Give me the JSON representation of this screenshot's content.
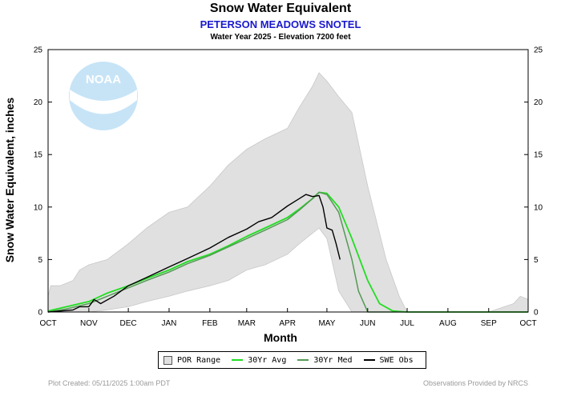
{
  "header": {
    "title": "Snow Water Equivalent",
    "station": "PETERSON MEADOWS SNOTEL",
    "subtitle": "Water Year 2025 -  Elevation 7200 feet"
  },
  "footer": {
    "created": "Plot Created: 05/11/2025 1:00am PDT",
    "provider": "Observations Provided by NRCS"
  },
  "logo": {
    "text": "NOAA"
  },
  "colors": {
    "por": "#e0e0e0",
    "avg": "#22dd22",
    "med": "#559955",
    "obs": "#000000"
  },
  "chart_data": {
    "type": "area",
    "xlabel": "Month",
    "ylabel": "Snow Water Equivalent, inches",
    "ylim": [
      0,
      25
    ],
    "yticks": [
      0,
      5,
      10,
      15,
      20,
      25
    ],
    "x_ticks": [
      "OCT",
      "NOV",
      "DEC",
      "JAN",
      "FEB",
      "MAR",
      "APR",
      "MAY",
      "JUN",
      "JUL",
      "AUG",
      "SEP",
      "OCT"
    ],
    "grid": false,
    "legend_position": "bottom",
    "legend": [
      "POR Range",
      "30Yr Avg",
      "30Yr Med",
      "SWE Obs"
    ],
    "por_range": {
      "x": [
        "Oct 1",
        "Oct 3",
        "Oct 6",
        "Oct 10",
        "Oct 20",
        "Oct 25",
        "Nov 1",
        "Nov 15",
        "Dec 1",
        "Dec 15",
        "Jan 1",
        "Jan 15",
        "Feb 1",
        "Feb 15",
        "Mar 1",
        "Mar 15",
        "Apr 1",
        "Apr 10",
        "Apr 20",
        "Apr 25",
        "May 1",
        "May 10",
        "May 20",
        "Jun 1",
        "Jun 15",
        "Jun 25",
        "Jul 1",
        "Aug 1",
        "Sep 1",
        "Sep 20",
        "Sep 25",
        "Oct 1"
      ],
      "max": [
        1.5,
        2.5,
        2.5,
        2.5,
        3.0,
        4.0,
        4.5,
        5.0,
        6.5,
        8.0,
        9.5,
        10.0,
        12.0,
        14.0,
        15.5,
        16.5,
        17.5,
        19.5,
        21.5,
        22.8,
        22.0,
        20.5,
        19.0,
        12.0,
        5.0,
        1.5,
        0,
        0,
        0,
        0.8,
        1.5,
        1.2
      ],
      "min": [
        0,
        0,
        0,
        0,
        0,
        0,
        0,
        0.2,
        0.5,
        1.0,
        1.5,
        2.0,
        2.5,
        3.0,
        4.0,
        4.5,
        5.5,
        6.5,
        7.5,
        8.0,
        7.0,
        2.0,
        0,
        0,
        0,
        0,
        0,
        0,
        0,
        0,
        0,
        0
      ]
    },
    "series": [
      {
        "name": "30Yr Avg",
        "x": [
          "Oct 1",
          "Oct 15",
          "Nov 1",
          "Nov 15",
          "Dec 1",
          "Dec 15",
          "Jan 1",
          "Jan 15",
          "Feb 1",
          "Feb 15",
          "Mar 1",
          "Mar 15",
          "Apr 1",
          "Apr 10",
          "Apr 20",
          "Apr 25",
          "May 1",
          "May 10",
          "May 20",
          "Jun 1",
          "Jun 10",
          "Jun 20",
          "Jul 1",
          "Aug 1",
          "Sep 1",
          "Oct 1"
        ],
        "values": [
          0.1,
          0.5,
          1.0,
          1.8,
          2.5,
          3.2,
          4.0,
          4.8,
          5.5,
          6.3,
          7.2,
          8.0,
          9.0,
          9.8,
          10.8,
          11.4,
          11.3,
          10.0,
          7.0,
          3.0,
          0.8,
          0.1,
          0,
          0,
          0,
          0
        ]
      },
      {
        "name": "30Yr Med",
        "x": [
          "Oct 1",
          "Oct 15",
          "Nov 1",
          "Nov 15",
          "Dec 1",
          "Dec 15",
          "Jan 1",
          "Jan 15",
          "Feb 1",
          "Feb 15",
          "Mar 1",
          "Mar 15",
          "Apr 1",
          "Apr 10",
          "Apr 20",
          "Apr 25",
          "May 1",
          "May 10",
          "May 20",
          "May 25",
          "Jun 1",
          "Jul 1",
          "Aug 1",
          "Sep 1",
          "Oct 1"
        ],
        "values": [
          0,
          0.3,
          0.8,
          1.5,
          2.3,
          3.0,
          3.8,
          4.6,
          5.4,
          6.2,
          7.0,
          7.8,
          8.8,
          9.7,
          10.8,
          11.4,
          11.2,
          9.5,
          5.0,
          2.0,
          0,
          0,
          0,
          0,
          0
        ]
      },
      {
        "name": "SWE Obs",
        "x": [
          "Oct 1",
          "Oct 20",
          "Oct 25",
          "Nov 1",
          "Nov 5",
          "Nov 10",
          "Nov 20",
          "Dec 1",
          "Dec 15",
          "Jan 1",
          "Jan 15",
          "Feb 1",
          "Feb 15",
          "Mar 1",
          "Mar 10",
          "Mar 20",
          "Apr 1",
          "Apr 10",
          "Apr 15",
          "Apr 20",
          "Apr 25",
          "Apr 28",
          "May 1",
          "May 5",
          "May 8",
          "May 11"
        ],
        "values": [
          0,
          0.2,
          0.5,
          0.5,
          1.2,
          0.8,
          1.5,
          2.5,
          3.3,
          4.3,
          5.1,
          6.1,
          7.1,
          7.9,
          8.6,
          9.0,
          10.1,
          10.8,
          11.2,
          11.0,
          11.1,
          10.0,
          8.0,
          7.8,
          6.5,
          5.0
        ]
      }
    ]
  }
}
